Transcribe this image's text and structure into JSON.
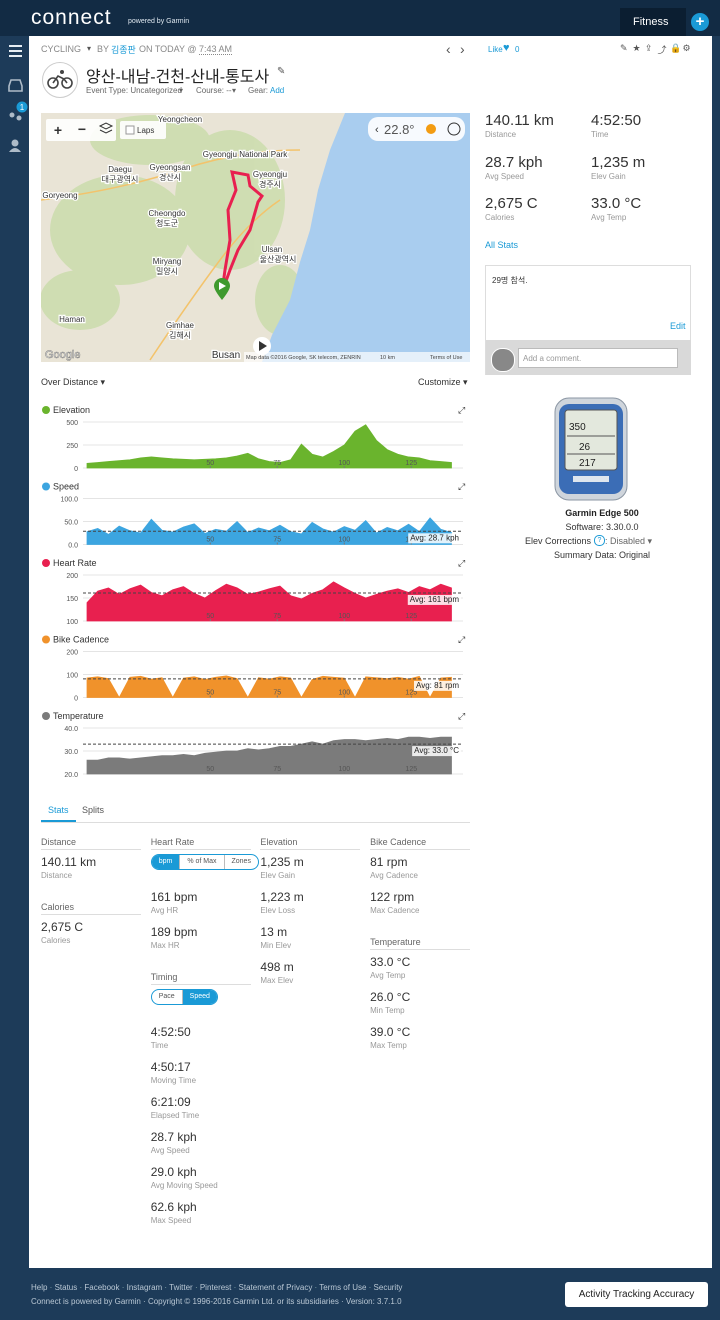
{
  "header": {
    "logo": "connect",
    "powered": "powered by Garmin",
    "tab": "Fitness",
    "plus": "+"
  },
  "sidebar": {
    "badge": "1"
  },
  "activity": {
    "type": "CYCLING",
    "by": "BY",
    "author": "김종판",
    "on": "ON TODAY @",
    "time": "7:43 AM",
    "title": "양산-내남-건천-산내-통도사",
    "event_type": "Event Type: Uncategorized",
    "course": "Course: --",
    "gear": "Gear:",
    "gear_add": "Add",
    "like": "Like",
    "like_count": "0"
  },
  "map": {
    "laps": "Laps",
    "temperature": "22.8°",
    "google": "Google",
    "attribution": "Map data ©2016 Google, SK telecom, ZENRIN",
    "scale": "10 km",
    "terms": "Terms of Use",
    "labels": [
      "Yeongcheon",
      "Daegu",
      "대구광역시",
      "Gyeongsan",
      "경산시",
      "Gyeongju National Park",
      "Gyeongju",
      "경주시",
      "Cheongdo",
      "청도군",
      "Miryang",
      "밀양시",
      "Ulsan",
      "울산광역시",
      "Gimhae",
      "김해시",
      "Busan",
      "Goryeong",
      "Haman"
    ]
  },
  "summary": [
    {
      "value": "140.11 km",
      "label": "Distance"
    },
    {
      "value": "4:52:50",
      "label": "Time"
    },
    {
      "value": "28.7 kph",
      "label": "Avg Speed"
    },
    {
      "value": "1,235 m",
      "label": "Elev Gain"
    },
    {
      "value": "2,675 C",
      "label": "Calories"
    },
    {
      "value": "33.0 °C",
      "label": "Avg Temp"
    }
  ],
  "all_stats": "All Stats",
  "comment": {
    "text": "29명 참석.",
    "edit": "Edit",
    "placeholder": "Add a comment."
  },
  "device": {
    "name": "Garmin Edge 500",
    "software": "Software: 3.30.0.0",
    "elev": "Elev Corrections",
    "elev_state": ": Disabled ▾",
    "summary": "Summary Data: Original"
  },
  "chart_controls": {
    "over": "Over Distance ▾",
    "customize": "Customize ▾"
  },
  "chart_data": [
    {
      "type": "area",
      "title": "Elevation",
      "color": "#6ab42d",
      "grid": true,
      "x": [
        4,
        8,
        12,
        16,
        20,
        24,
        28,
        32,
        36,
        40,
        44,
        48,
        52,
        56,
        60,
        64,
        68,
        72,
        76,
        80,
        84,
        88,
        92,
        96,
        100,
        104,
        108,
        112,
        116,
        120,
        124,
        128,
        132,
        136,
        140
      ],
      "values": [
        50,
        60,
        70,
        80,
        90,
        110,
        120,
        110,
        100,
        95,
        90,
        95,
        100,
        110,
        130,
        160,
        100,
        70,
        60,
        90,
        260,
        150,
        120,
        180,
        250,
        400,
        470,
        300,
        200,
        150,
        120,
        110,
        80,
        70,
        60
      ],
      "xlim": [
        2.5,
        144.3
      ],
      "xticks": [
        50,
        75,
        100,
        125
      ],
      "ylim": [
        0,
        600
      ],
      "yticks": [
        0,
        250,
        500
      ]
    },
    {
      "type": "area",
      "title": "Speed",
      "color": "#3ca5e0",
      "grid": true,
      "x": [
        4,
        8,
        12,
        16,
        20,
        24,
        28,
        32,
        36,
        40,
        44,
        48,
        52,
        56,
        60,
        64,
        68,
        72,
        76,
        80,
        84,
        88,
        92,
        96,
        100,
        104,
        108,
        112,
        116,
        120,
        124,
        128,
        132,
        136,
        140
      ],
      "values": [
        28,
        35,
        22,
        40,
        30,
        25,
        55,
        31,
        27,
        38,
        45,
        24,
        33,
        29,
        50,
        26,
        36,
        30,
        42,
        28,
        23,
        48,
        34,
        27,
        39,
        31,
        52,
        25,
        37,
        30,
        44,
        28,
        58,
        33,
        26
      ],
      "xlim": [
        2.5,
        144.3
      ],
      "xticks": [
        50,
        75,
        100,
        125
      ],
      "ylim": [
        0,
        120
      ],
      "yticks": [
        {
          "value": 0,
          "label": "0.0"
        },
        {
          "value": 50,
          "label": "50.0"
        },
        {
          "value": 100,
          "label": "100.0"
        }
      ],
      "avg": {
        "value": 28.7,
        "label": "Avg: 28.7 kph"
      }
    },
    {
      "type": "area",
      "title": "Heart Rate",
      "color": "#e8204f",
      "grid": true,
      "x": [
        4,
        8,
        12,
        16,
        20,
        24,
        28,
        32,
        36,
        40,
        44,
        48,
        52,
        56,
        60,
        64,
        68,
        72,
        76,
        80,
        84,
        88,
        92,
        96,
        100,
        104,
        108,
        112,
        116,
        120,
        124,
        128,
        132,
        136,
        140
      ],
      "values": [
        140,
        165,
        172,
        158,
        170,
        178,
        162,
        155,
        168,
        175,
        160,
        150,
        166,
        180,
        172,
        158,
        163,
        170,
        176,
        155,
        148,
        160,
        168,
        185,
        172,
        160,
        150,
        158,
        165,
        170,
        162,
        175,
        168,
        180,
        172
      ],
      "xlim": [
        2.5,
        144.3
      ],
      "xticks": [
        50,
        75,
        100,
        125
      ],
      "ylim": [
        100,
        220
      ],
      "yticks": [
        100,
        150,
        200
      ],
      "avg": {
        "value": 161,
        "label": "Avg: 161 bpm"
      }
    },
    {
      "type": "area",
      "title": "Bike Cadence",
      "color": "#f0922b",
      "grid": true,
      "x": [
        4,
        8,
        12,
        16,
        20,
        24,
        28,
        32,
        36,
        40,
        44,
        48,
        52,
        56,
        60,
        64,
        68,
        72,
        76,
        80,
        84,
        88,
        92,
        96,
        100,
        104,
        108,
        112,
        116,
        120,
        124,
        128,
        132,
        136,
        140
      ],
      "values": [
        85,
        90,
        82,
        0,
        88,
        92,
        80,
        86,
        0,
        84,
        90,
        78,
        88,
        94,
        82,
        0,
        86,
        80,
        90,
        85,
        0,
        78,
        92,
        88,
        84,
        0,
        90,
        86,
        82,
        88,
        80,
        92,
        0,
        85,
        88
      ],
      "xlim": [
        2.5,
        144.3
      ],
      "xticks": [
        50,
        75,
        100,
        125
      ],
      "ylim": [
        0,
        240
      ],
      "yticks": [
        0,
        100,
        200
      ],
      "avg": {
        "value": 81,
        "label": "Avg: 81 rpm"
      }
    },
    {
      "type": "area",
      "title": "Temperature",
      "color": "#7b7b7b",
      "grid": true,
      "x": [
        4,
        8,
        12,
        16,
        20,
        24,
        28,
        32,
        36,
        40,
        44,
        48,
        52,
        56,
        60,
        64,
        68,
        72,
        76,
        80,
        84,
        88,
        92,
        96,
        100,
        104,
        108,
        112,
        116,
        120,
        124,
        128,
        132,
        136,
        140
      ],
      "values": [
        26,
        26,
        27,
        27,
        26.5,
        27,
        27.5,
        28,
        28,
        28.5,
        28,
        29,
        29.5,
        30,
        30,
        31,
        30.5,
        31,
        32,
        32,
        33,
        34,
        33,
        34.5,
        35,
        35,
        34.5,
        35,
        35.5,
        35,
        36,
        36,
        35.5,
        36,
        36
      ],
      "xlim": [
        2.5,
        144.3
      ],
      "xticks": [
        50,
        75,
        100,
        125
      ],
      "ylim": [
        20,
        44
      ],
      "yticks": [
        {
          "value": 20,
          "label": "20.0"
        },
        {
          "value": 30,
          "label": "30.0"
        },
        {
          "value": 40,
          "label": "40.0"
        }
      ],
      "avg": {
        "value": 33,
        "label": "Avg: 33.0 °C"
      }
    }
  ],
  "stats": {
    "tabs": [
      "Stats",
      "Splits"
    ],
    "columns": [
      [
        {
          "heading": "Distance",
          "items": [
            {
              "value": "140.11 km",
              "label": "Distance"
            }
          ]
        },
        {
          "heading": "Calories",
          "items": [
            {
              "value": "2,675 C",
              "label": "Calories"
            }
          ]
        }
      ],
      [
        {
          "heading": "Heart Rate",
          "toggle": {
            "options": [
              "bpm",
              "% of Max",
              "Zones"
            ],
            "active": 0
          },
          "items": [
            {
              "value": "161 bpm",
              "label": "Avg HR"
            },
            {
              "value": "189 bpm",
              "label": "Max HR"
            }
          ]
        },
        {
          "heading": "Timing",
          "toggle": {
            "options": [
              "Pace",
              "Speed"
            ],
            "active": 1
          },
          "items": [
            {
              "value": "4:52:50",
              "label": "Time"
            },
            {
              "value": "4:50:17",
              "label": "Moving Time"
            },
            {
              "value": "6:21:09",
              "label": "Elapsed Time"
            },
            {
              "value": "28.7 kph",
              "label": "Avg Speed"
            },
            {
              "value": "29.0 kph",
              "label": "Avg Moving Speed"
            },
            {
              "value": "62.6 kph",
              "label": "Max Speed"
            }
          ]
        }
      ],
      [
        {
          "heading": "Elevation",
          "items": [
            {
              "value": "1,235 m",
              "label": "Elev Gain"
            },
            {
              "value": "1,223 m",
              "label": "Elev Loss"
            },
            {
              "value": "13 m",
              "label": "Min Elev"
            },
            {
              "value": "498 m",
              "label": "Max Elev"
            }
          ]
        }
      ],
      [
        {
          "heading": "Bike Cadence",
          "items": [
            {
              "value": "81 rpm",
              "label": "Avg Cadence"
            },
            {
              "value": "122 rpm",
              "label": "Max Cadence"
            }
          ]
        },
        {
          "heading": "Temperature",
          "items": [
            {
              "value": "33.0 °C",
              "label": "Avg Temp"
            },
            {
              "value": "26.0 °C",
              "label": "Min Temp"
            },
            {
              "value": "39.0 °C",
              "label": "Max Temp"
            }
          ]
        }
      ]
    ]
  },
  "footer": {
    "links": [
      "Help",
      "Status",
      "Facebook",
      "Instagram",
      "Twitter",
      "Pinterest",
      "Statement of Privacy",
      "Terms of Use",
      "Security"
    ],
    "copyright": "Connect is powered by Garmin · Copyright © 1996-2016 Garmin Ltd. or its subsidiaries · Version: 3.7.1.0",
    "button": "Activity Tracking Accuracy"
  }
}
